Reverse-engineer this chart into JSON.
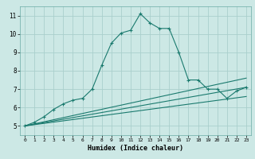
{
  "xlabel": "Humidex (Indice chaleur)",
  "background_color": "#cce8e5",
  "grid_color": "#aacfcc",
  "line_color": "#1a7a6e",
  "xlim": [
    -0.5,
    23.5
  ],
  "ylim": [
    4.5,
    11.5
  ],
  "xticks": [
    0,
    1,
    2,
    3,
    4,
    5,
    6,
    7,
    8,
    9,
    10,
    11,
    12,
    13,
    14,
    15,
    16,
    17,
    18,
    19,
    20,
    21,
    22,
    23
  ],
  "yticks": [
    5,
    6,
    7,
    8,
    9,
    10,
    11
  ],
  "series": [
    {
      "x": [
        0,
        1,
        2,
        3,
        4,
        5,
        6,
        7,
        8,
        9,
        10,
        11,
        12,
        13,
        14,
        15,
        16,
        17,
        18,
        19,
        20,
        21,
        22,
        23
      ],
      "y": [
        5.0,
        5.2,
        5.5,
        5.9,
        6.2,
        6.4,
        6.5,
        7.0,
        8.3,
        9.5,
        10.05,
        10.2,
        11.1,
        10.6,
        10.3,
        10.3,
        9.0,
        7.5,
        7.5,
        7.0,
        7.0,
        6.5,
        6.9,
        7.1
      ],
      "marker": true
    },
    {
      "x": [
        0,
        23
      ],
      "y": [
        5.0,
        7.6
      ],
      "marker": false
    },
    {
      "x": [
        0,
        23
      ],
      "y": [
        5.0,
        7.1
      ],
      "marker": false
    },
    {
      "x": [
        0,
        23
      ],
      "y": [
        5.0,
        6.6
      ],
      "marker": false
    }
  ]
}
